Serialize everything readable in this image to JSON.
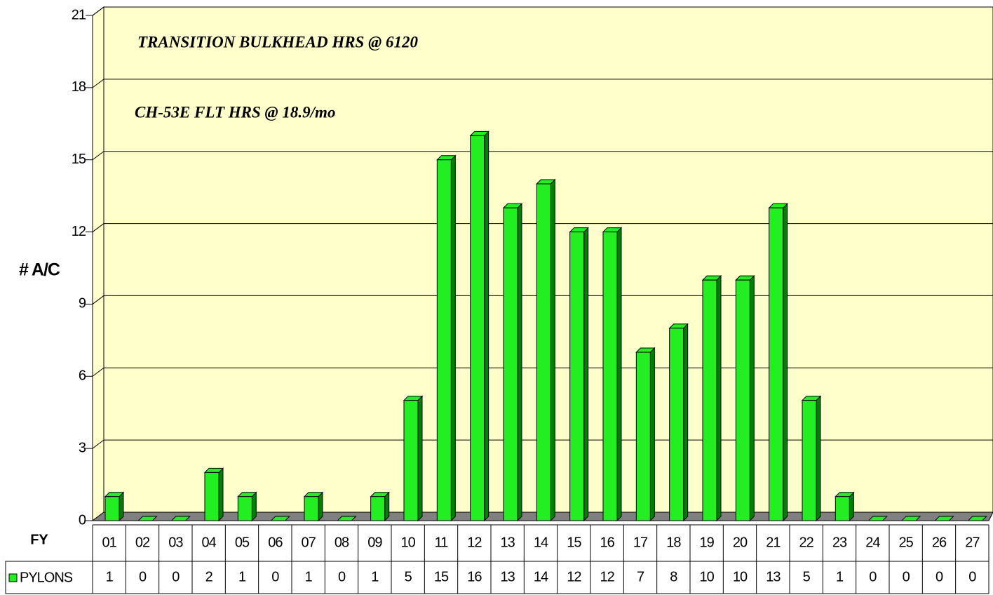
{
  "chart_data": {
    "type": "bar",
    "annotations": [
      "TRANSITION BULKHEAD HRS @ 6120",
      "CH-53E FLT HRS @ 18.9/mo"
    ],
    "y_label": "# A/C",
    "x_label": "FY",
    "categories": [
      "01",
      "02",
      "03",
      "04",
      "05",
      "06",
      "07",
      "08",
      "09",
      "10",
      "11",
      "12",
      "13",
      "14",
      "15",
      "16",
      "17",
      "18",
      "19",
      "20",
      "21",
      "22",
      "23",
      "24",
      "25",
      "26",
      "27"
    ],
    "series": [
      {
        "name": "PYLONS",
        "color": "#22ee22",
        "values": [
          1,
          0,
          0,
          2,
          1,
          0,
          1,
          0,
          1,
          5,
          15,
          16,
          13,
          14,
          12,
          12,
          7,
          8,
          10,
          10,
          13,
          5,
          1,
          0,
          0,
          0,
          0
        ]
      }
    ],
    "ylim": [
      0,
      21
    ],
    "yticks": [
      0,
      3,
      6,
      9,
      12,
      15,
      18,
      21
    ],
    "grid": true
  }
}
